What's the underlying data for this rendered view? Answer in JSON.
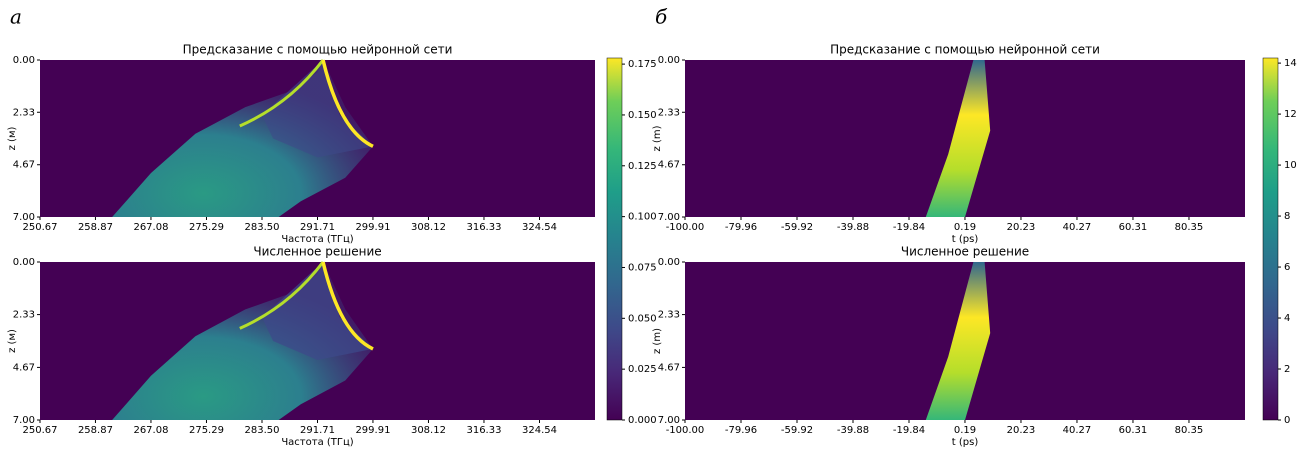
{
  "chart_data": [
    {
      "type": "heatmap",
      "panel_label": "а",
      "title": "Предсказание с помощью нейронной сети",
      "xlabel": "Частота (ТГц)",
      "ylabel": "z (м)",
      "xlim": [
        250.67,
        332.75
      ],
      "xticks": [
        250.67,
        258.87,
        267.08,
        275.29,
        {
          "value": 283.5,
          "label": "283.50"
        },
        291.71,
        299.91,
        308.12,
        316.33,
        324.54
      ],
      "ylim": [
        0,
        7
      ],
      "invert_y": true,
      "yticks": [
        {
          "value": 0,
          "label": "0.00"
        },
        2.33,
        4.67,
        {
          "value": 7,
          "label": "7.00"
        }
      ],
      "colorbar": {
        "lim": [
          0,
          0.178
        ],
        "ticks": [
          {
            "value": 0,
            "label": "0.000"
          },
          0.025,
          {
            "value": 0.05,
            "label": "0.050"
          },
          0.075,
          {
            "value": 0.1,
            "label": "0.100"
          },
          0.125,
          {
            "value": 0.15,
            "label": "0.150"
          },
          0.175
        ]
      }
    },
    {
      "type": "heatmap",
      "title": "Численное решение",
      "xlabel": "Частота (ТГц)",
      "ylabel": "z (м)",
      "xlim": [
        250.67,
        332.75
      ],
      "xticks": [
        250.67,
        258.87,
        267.08,
        275.29,
        {
          "value": 283.5,
          "label": "283.50"
        },
        291.71,
        299.91,
        308.12,
        316.33,
        324.54
      ],
      "ylim": [
        0,
        7
      ],
      "invert_y": true,
      "yticks": [
        {
          "value": 0,
          "label": "0.00"
        },
        2.33,
        4.67,
        {
          "value": 7,
          "label": "7.00"
        }
      ]
    },
    {
      "type": "heatmap",
      "panel_label": "б",
      "title": "Предсказание с помощью нейронной сети",
      "xlabel": "t (ps)",
      "ylabel": "z (m)",
      "xlim": [
        -100,
        100.4
      ],
      "xticks": [
        {
          "value": -100,
          "label": "-100.00"
        },
        -79.96,
        -59.92,
        -39.88,
        -19.84,
        0.19,
        20.23,
        40.27,
        60.31,
        80.35
      ],
      "ylim": [
        0,
        7
      ],
      "invert_y": true,
      "yticks": [
        {
          "value": 0,
          "label": "0.00"
        },
        2.33,
        4.67,
        {
          "value": 7,
          "label": "7.00"
        }
      ],
      "colorbar": {
        "lim": [
          0,
          14.2
        ],
        "ticks": [
          0,
          2,
          4,
          6,
          8,
          10,
          12,
          14
        ]
      }
    },
    {
      "type": "heatmap",
      "title": "Численное решение",
      "xlabel": "t (ps)",
      "ylabel": "z (m)",
      "xlim": [
        -100,
        100.4
      ],
      "xticks": [
        {
          "value": -100,
          "label": "-100.00"
        },
        -79.96,
        -59.92,
        -39.88,
        -19.84,
        0.19,
        20.23,
        40.27,
        60.31,
        80.35
      ],
      "ylim": [
        0,
        7
      ],
      "invert_y": true,
      "yticks": [
        {
          "value": 0,
          "label": "0.00"
        },
        2.33,
        4.67,
        {
          "value": 7,
          "label": "7.00"
        }
      ]
    }
  ]
}
